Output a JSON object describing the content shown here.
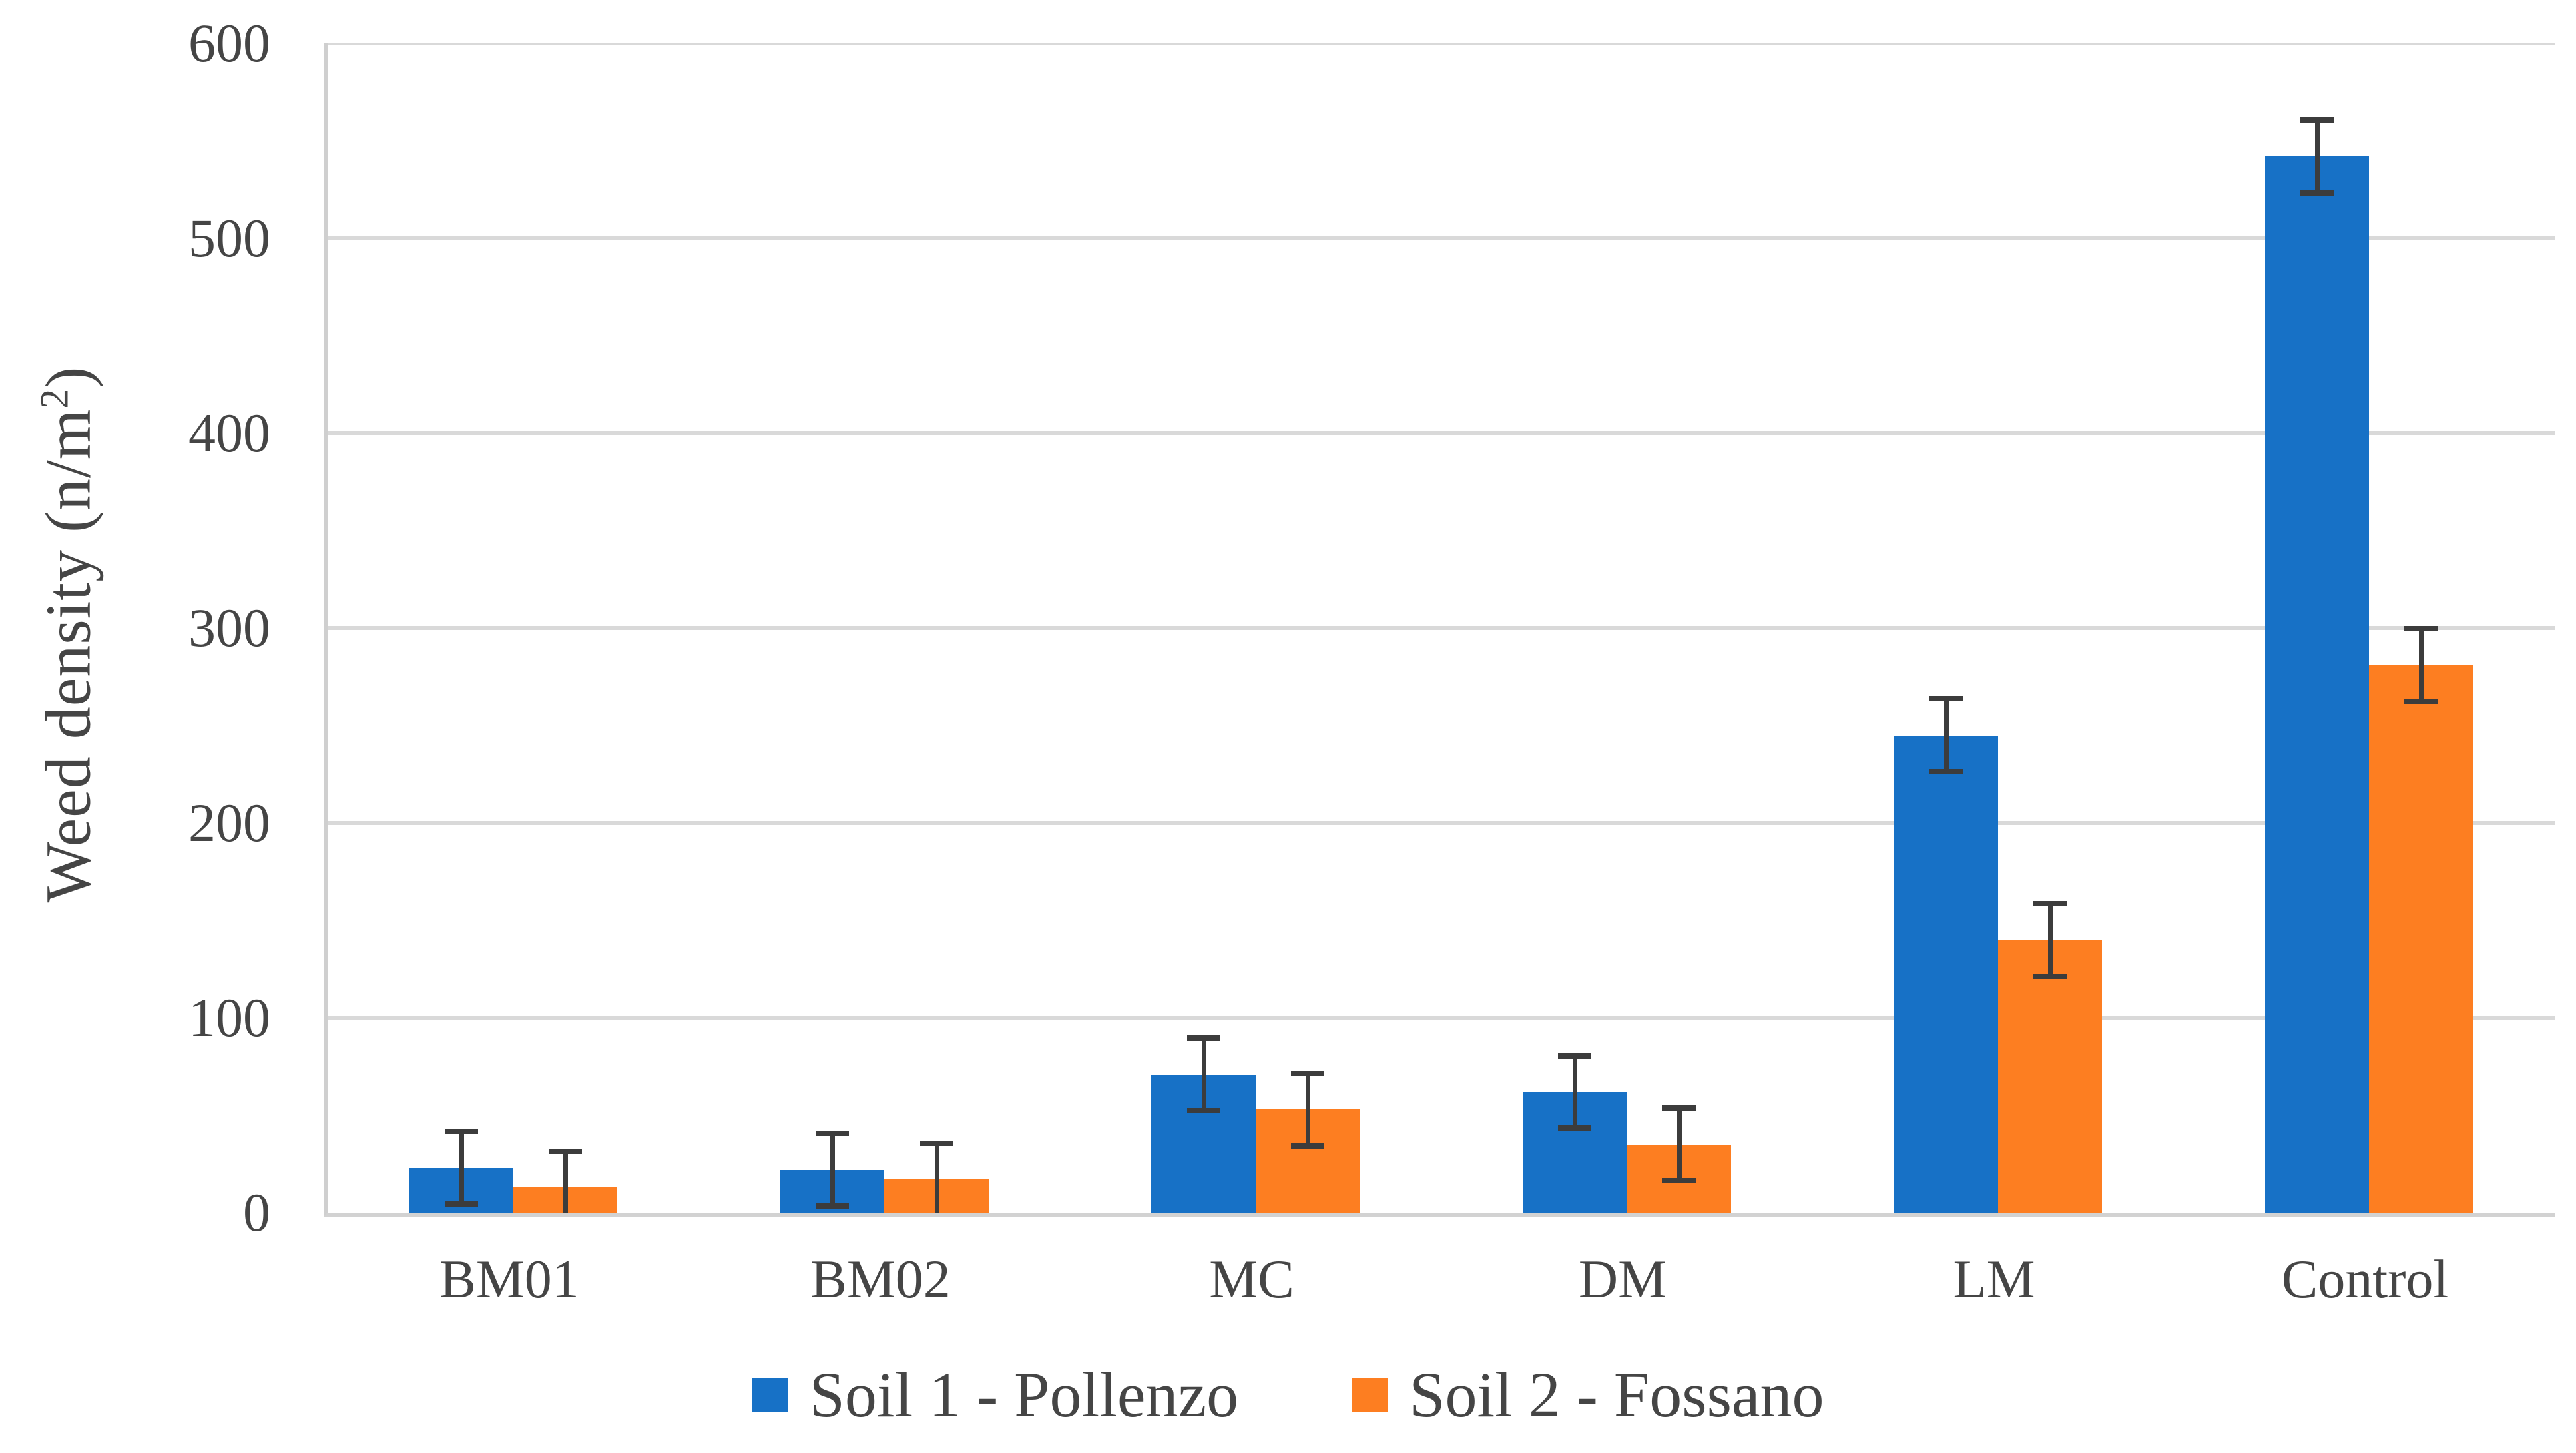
{
  "chart_data": {
    "type": "bar",
    "title": "",
    "xlabel": "",
    "ylabel": "Weed density (n/m²)",
    "ylabel_base": "Weed density (n/m",
    "ylabel_sup": "2",
    "ylabel_close": ")",
    "categories": [
      "BM01",
      "BM02",
      "MC",
      "DM",
      "LM",
      "Control"
    ],
    "series": [
      {
        "name": "Soil 1 - Pollenzo",
        "color": "#1771C6",
        "values": [
          23,
          22,
          71,
          62,
          245,
          542
        ],
        "errors": [
          20,
          20,
          20,
          20,
          20,
          20
        ]
      },
      {
        "name": "Soil 2 - Fossano",
        "color": "#FD7E21",
        "values": [
          13,
          17,
          53,
          35,
          140,
          281
        ],
        "errors": [
          20,
          20,
          20,
          20,
          20,
          20
        ]
      }
    ],
    "ylim": [
      0,
      600
    ],
    "ytick_step": 100,
    "yticks": [
      0,
      100,
      200,
      300,
      400,
      500,
      600
    ],
    "grid": "horizontal-only",
    "legend_position": "bottom-center",
    "error_bars": "symmetric, dark gray caps",
    "colors": {
      "gridline": "#D9D9D9",
      "axis_line": "#CFCFCF",
      "error_bar": "#3C3C3C",
      "text": "#454545",
      "background": "#FFFFFF"
    }
  }
}
